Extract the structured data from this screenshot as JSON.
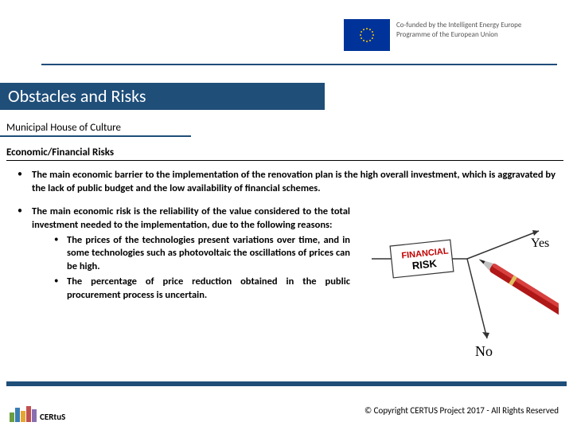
{
  "header": {
    "cofund_line1": "Co-funded by the Intelligent Energy Europe",
    "cofund_line2": "Programme of the European Union"
  },
  "title": "Obstacles and Risks",
  "subtitle": "Municipal House of Culture",
  "section_heading": "Economic/Financial Risks",
  "bullets": [
    {
      "text": "The main economic barrier to the implementation of the renovation plan is the high overall investment, which is aggravated by the lack of public budget and the low availability of financial schemes."
    },
    {
      "text": "The main economic risk is the reliability of the value considered to the total investment needed to the implementation, due to the following reasons:",
      "subs": [
        "The prices of the technologies present variations over time, and in some technologies such as photovoltaic the oscillations of prices can be high.",
        "The percentage of price reduction obtained in the public procurement process is uncertain."
      ]
    }
  ],
  "risk_diagram": {
    "label_financial": "FINANCIAL",
    "label_risk": "RISK",
    "label_yes": "Yes",
    "label_no": "No",
    "colors": {
      "financial": "#c00000",
      "risk": "#000000",
      "pen_body": "#b01818",
      "line": "#333333"
    }
  },
  "logo": {
    "text": "CERtuS",
    "bar_colors": [
      "#6b9e3f",
      "#3a7db5",
      "#e6a532",
      "#c05050",
      "#8a6fb0"
    ],
    "bar_heights": [
      12,
      18,
      14,
      20,
      16
    ]
  },
  "copyright": "© Copyright CERTUS Project 2017 - All Rights Reserved",
  "colors": {
    "primary": "#1f4e79",
    "eu_blue": "#003399",
    "eu_gold": "#ffcc00"
  }
}
